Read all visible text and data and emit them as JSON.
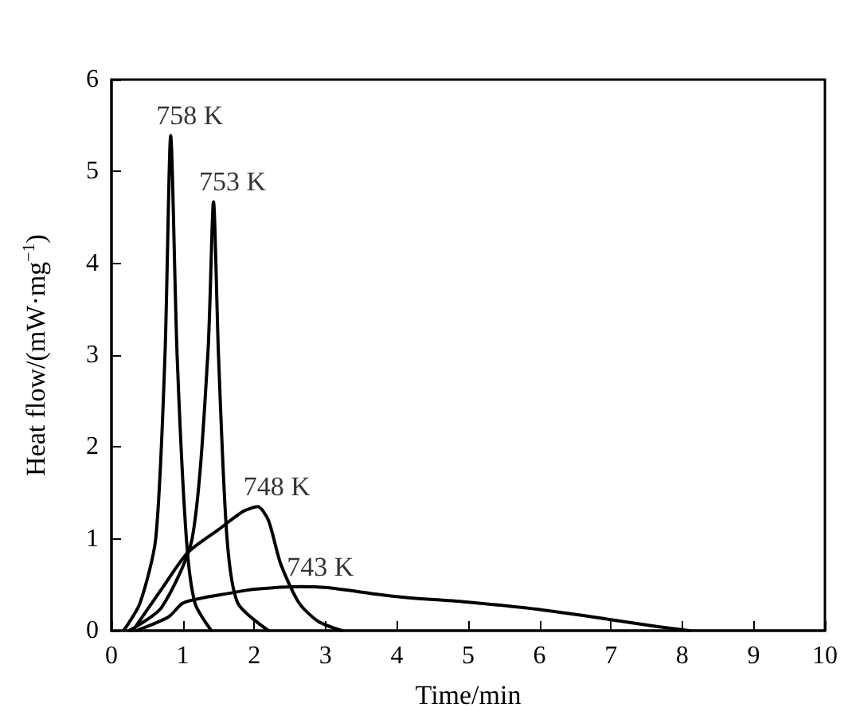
{
  "chart_data": {
    "type": "line",
    "xlabel": "Time/min",
    "ylabel": "Heat flow/(mW·mg$^{−1}$)",
    "xlim": [
      0,
      10
    ],
    "xticks": [
      0,
      1,
      2,
      3,
      4,
      5,
      6,
      7,
      8,
      9,
      10
    ],
    "ylim": [
      0,
      6
    ],
    "yticks": [
      0,
      1,
      2,
      3,
      4,
      5,
      6
    ],
    "grid": false,
    "marker": "none",
    "line_style": "solid",
    "series": [
      {
        "color": "#000000",
        "x": [
          0.17,
          0.4,
          0.62,
          0.75,
          0.83,
          0.92,
          1.05,
          1.17,
          1.4
        ],
        "values": [
          0,
          0.3,
          1.0,
          3.0,
          5.39,
          3.0,
          1.0,
          0.3,
          0
        ]
      },
      {
        "color": "#000000",
        "x": [
          0.25,
          0.7,
          1.13,
          1.35,
          1.43,
          1.5,
          1.62,
          1.77,
          2.2
        ],
        "values": [
          0,
          0.25,
          1.0,
          3.0,
          4.67,
          3.0,
          1.0,
          0.3,
          0
        ]
      },
      {
        "color": "#000000",
        "x": [
          0.3,
          0.7,
          1.07,
          1.5,
          1.85,
          2.05,
          2.2,
          2.37,
          2.63,
          2.9,
          3.23
        ],
        "values": [
          0,
          0.45,
          0.85,
          1.1,
          1.3,
          1.35,
          1.2,
          0.73,
          0.3,
          0.1,
          0
        ]
      },
      {
        "color": "#000000",
        "x": [
          0.35,
          0.8,
          1.0,
          1.3,
          1.6,
          2.0,
          2.66,
          3.0,
          4.0,
          5.0,
          6.0,
          7.0,
          7.6,
          8.1
        ],
        "values": [
          0,
          0.15,
          0.3,
          0.36,
          0.4,
          0.45,
          0.48,
          0.47,
          0.37,
          0.31,
          0.23,
          0.12,
          0.05,
          0
        ]
      }
    ],
    "annotations": [
      "758 K",
      "753 K",
      "748 K",
      "743 K"
    ]
  }
}
